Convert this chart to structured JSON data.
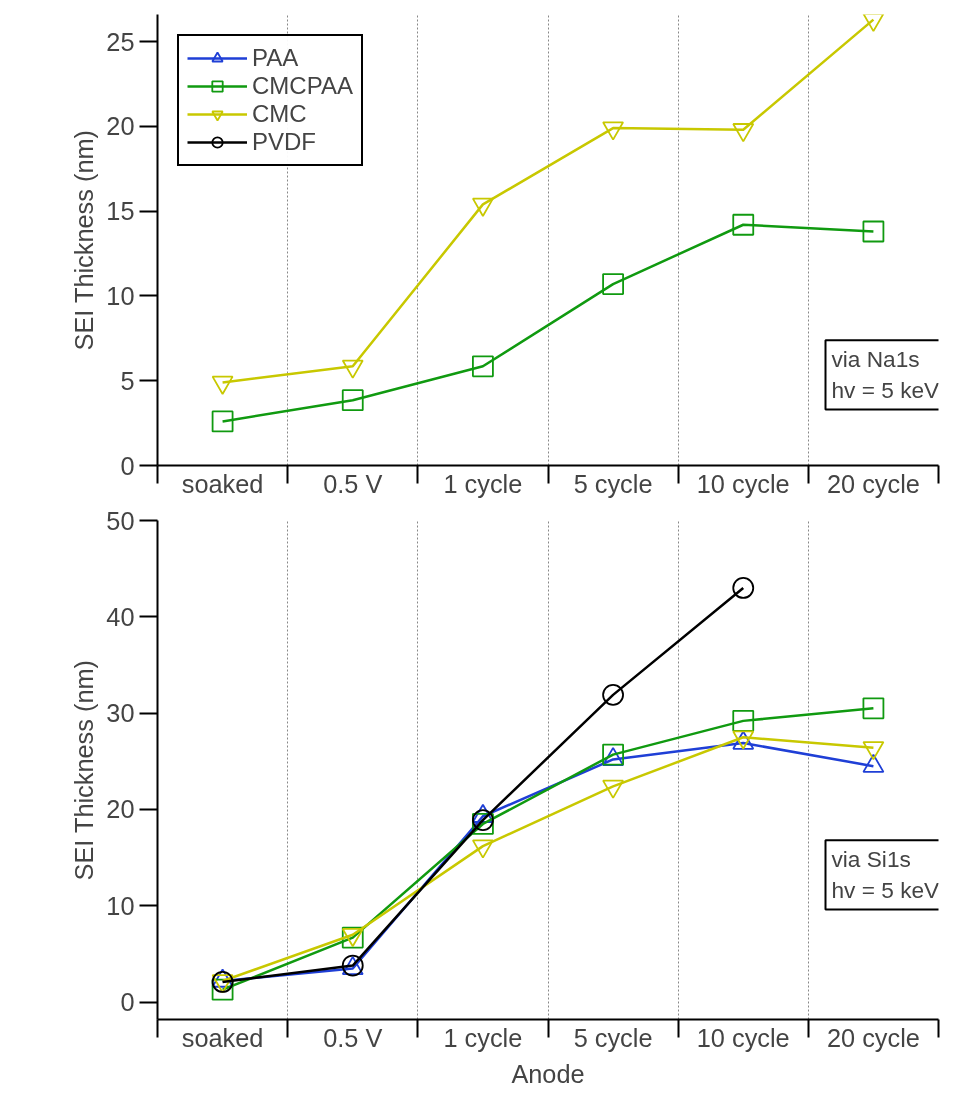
{
  "chart_data": [
    {
      "type": "line",
      "ylabel": "SEI Thickness (nm)",
      "ylim": [
        0,
        26.6
      ],
      "categories": [
        "soaked",
        "0.5 V",
        "1 cycle",
        "5 cycle",
        "10 cycle",
        "20 cycle"
      ],
      "yticks": [
        0,
        5,
        10,
        15,
        20,
        25
      ],
      "grid": "x",
      "legend": "top left",
      "annotations": [
        "via Na1s\nhv = 5 keV"
      ],
      "series": [
        {
          "name": "PAA",
          "color": "#1f3fd6",
          "marker": "triangle",
          "values": [
            null,
            null,
            null,
            null,
            null,
            null
          ]
        },
        {
          "name": "CMCPAA",
          "color": "#109a10",
          "marker": "square",
          "values": [
            2.6,
            3.85,
            5.85,
            10.7,
            14.2,
            13.8
          ]
        },
        {
          "name": "CMC",
          "color": "#c8c800",
          "marker": "triangle_down",
          "values": [
            4.9,
            5.85,
            15.4,
            19.9,
            19.8,
            26.3
          ]
        },
        {
          "name": "PVDF",
          "color": "#000000",
          "marker": "circle",
          "values": [
            null,
            null,
            null,
            null,
            null,
            null
          ]
        }
      ]
    },
    {
      "type": "line",
      "xlabel": "Anode",
      "ylabel": "SEI Thickness (nm)",
      "ylim": [
        -1.8,
        50
      ],
      "categories": [
        "soaked",
        "0.5 V",
        "1 cycle",
        "5 cycle",
        "10 cycle",
        "20 cycle"
      ],
      "yticks": [
        0,
        10,
        20,
        30,
        40,
        50
      ],
      "grid": "x",
      "annotations": [
        "via Si1s\nhv = 5 keV"
      ],
      "series": [
        {
          "color": "#1f3fd6",
          "marker": "triangle",
          "values": [
            2.2,
            3.5,
            19.3,
            25.2,
            26.9,
            24.5
          ]
        },
        {
          "color": "#109a10",
          "marker": "square",
          "values": [
            1.3,
            6.7,
            18.5,
            25.7,
            29.2,
            30.5
          ]
        },
        {
          "color": "#c8c800",
          "marker": "triangle_down",
          "values": [
            2.2,
            7.0,
            16.2,
            22.4,
            27.5,
            26.4
          ]
        },
        {
          "color": "#000000",
          "marker": "circle",
          "values": [
            2.1,
            3.8,
            18.9,
            31.9,
            43.0,
            null
          ]
        }
      ]
    }
  ]
}
